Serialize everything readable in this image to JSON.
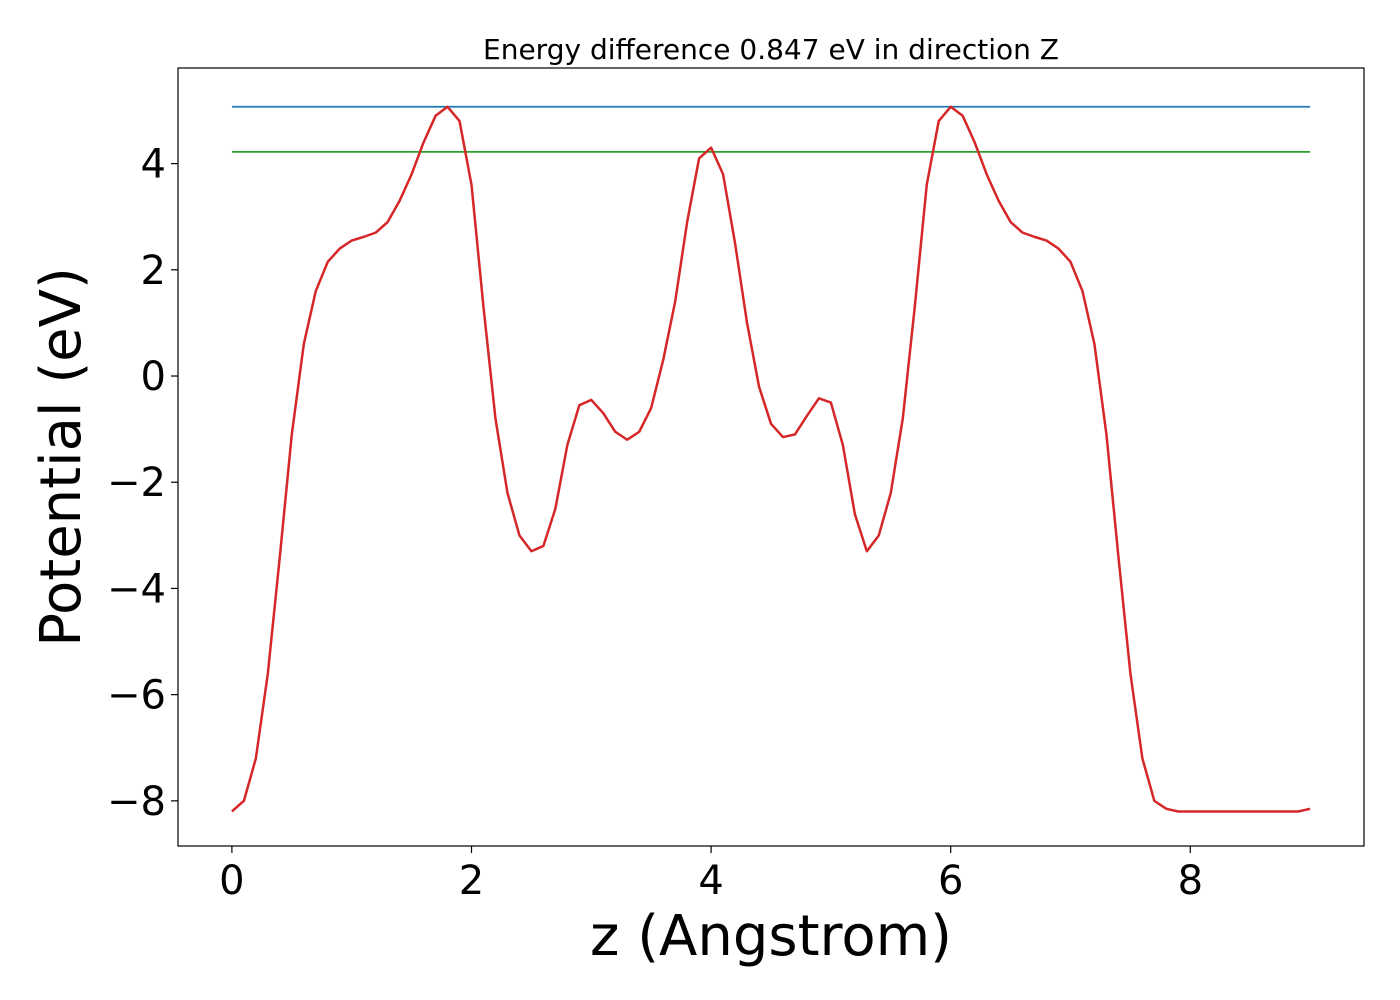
{
  "chart_data": {
    "type": "line",
    "title": "Energy difference 0.847 eV in direction Z",
    "xlabel": "z (Angstrom)",
    "ylabel": "Potential (eV)",
    "xlim": [
      -0.45,
      9.45
    ],
    "ylim": [
      -8.85,
      5.8
    ],
    "x_ticks": [
      0,
      2,
      4,
      6,
      8
    ],
    "x_tick_labels": [
      "0",
      "2",
      "4",
      "6",
      "8"
    ],
    "y_ticks": [
      -8,
      -6,
      -4,
      -2,
      0,
      2,
      4
    ],
    "y_tick_labels": [
      "−8",
      "−6",
      "−4",
      "−2",
      "0",
      "2",
      "4"
    ],
    "grid": false,
    "series": [
      {
        "color": "#d62728",
        "x": [
          0.0,
          0.1,
          0.2,
          0.3,
          0.4,
          0.5,
          0.6,
          0.7,
          0.8,
          0.9,
          1.0,
          1.1,
          1.2,
          1.3,
          1.4,
          1.5,
          1.6,
          1.7,
          1.8,
          1.9,
          2.0,
          2.1,
          2.2,
          2.3,
          2.4,
          2.5,
          2.6,
          2.7,
          2.8,
          2.9,
          3.0,
          3.1,
          3.2,
          3.3,
          3.4,
          3.5,
          3.6,
          3.7,
          3.8,
          3.9,
          4.0,
          4.1,
          4.2,
          4.3,
          4.4,
          4.5,
          4.6,
          4.7,
          4.8,
          4.9,
          5.0,
          5.1,
          5.2,
          5.3,
          5.4,
          5.5,
          5.6,
          5.7,
          5.8,
          5.9,
          6.0,
          6.1,
          6.2,
          6.3,
          6.4,
          6.5,
          6.6,
          6.7,
          6.8,
          6.9,
          7.0,
          7.1,
          7.2,
          7.3,
          7.4,
          7.5,
          7.6,
          7.7,
          7.8,
          7.9,
          8.0,
          8.1,
          8.2,
          8.3,
          8.4,
          8.5,
          8.6,
          8.7,
          8.8,
          8.9,
          9.0
        ],
        "y": [
          -8.2,
          -8.0,
          -7.2,
          -5.6,
          -3.4,
          -1.1,
          0.6,
          1.6,
          2.15,
          2.4,
          2.55,
          2.62,
          2.7,
          2.9,
          3.3,
          3.8,
          4.4,
          4.9,
          5.07,
          4.8,
          3.6,
          1.3,
          -0.8,
          -2.2,
          -3.0,
          -3.3,
          -3.2,
          -2.5,
          -1.3,
          -0.55,
          -0.45,
          -0.7,
          -1.05,
          -1.2,
          -1.05,
          -0.6,
          0.3,
          1.4,
          2.9,
          4.1,
          4.3,
          3.8,
          2.5,
          1.0,
          -0.2,
          -0.9,
          -1.15,
          -1.1,
          -0.75,
          -0.42,
          -0.5,
          -1.3,
          -2.6,
          -3.3,
          -3.0,
          -2.2,
          -0.8,
          1.3,
          3.6,
          4.8,
          5.07,
          4.9,
          4.4,
          3.8,
          3.3,
          2.9,
          2.7,
          2.62,
          2.55,
          2.4,
          2.15,
          1.6,
          0.6,
          -1.1,
          -3.4,
          -5.6,
          -7.2,
          -8.0,
          -8.15,
          -8.2,
          -8.2,
          -8.2,
          -8.2,
          -8.2,
          -8.2,
          -8.2,
          -8.2,
          -8.2,
          -8.2,
          -8.2,
          -8.15
        ],
        "x_scale_note": ""
      },
      {
        "color": "#1f77b4",
        "x": [
          0.0,
          9.0
        ],
        "y": [
          5.07,
          5.07
        ]
      },
      {
        "color": "#2ca02c",
        "x": [
          0.0,
          9.0
        ],
        "y": [
          4.22,
          4.22
        ]
      }
    ]
  }
}
